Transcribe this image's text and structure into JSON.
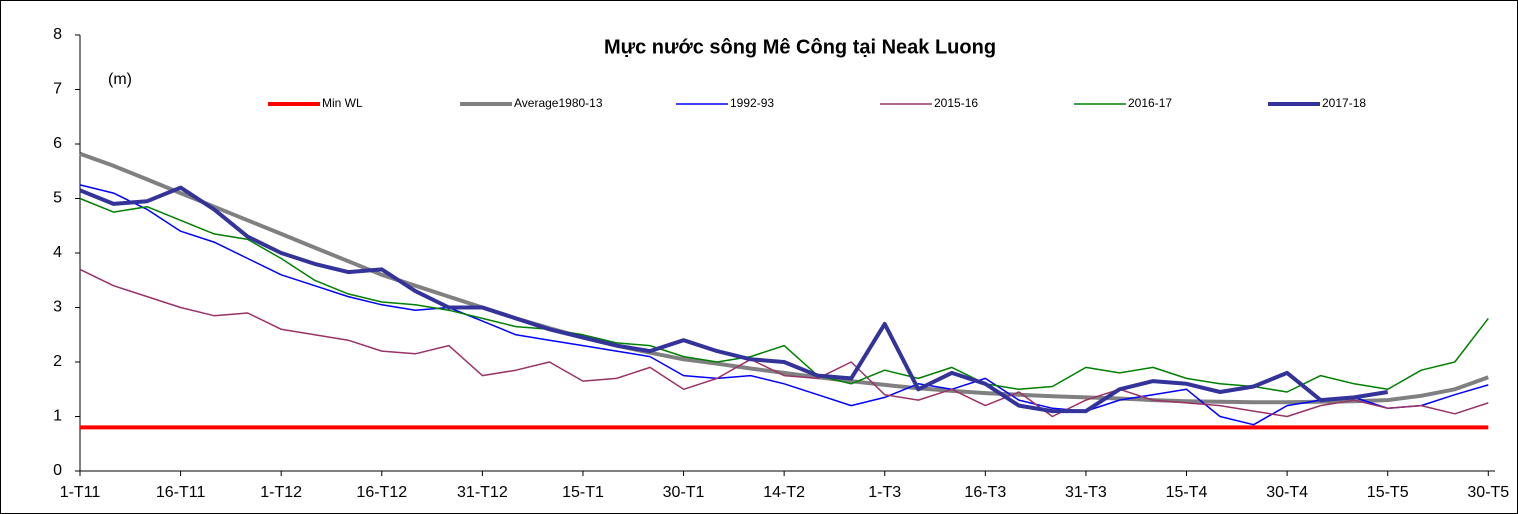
{
  "chart_data": {
    "type": "line",
    "title": "Mực nước sông Mê Công tại Neak Luong",
    "y_label": "(m)",
    "x": [
      0,
      5,
      10,
      15,
      20,
      25,
      30,
      35,
      40,
      45,
      50,
      55,
      60,
      65,
      70,
      75,
      80,
      85,
      90,
      95,
      100,
      105,
      110,
      115,
      120,
      125,
      130,
      135,
      140,
      145,
      150,
      155,
      160,
      165,
      170,
      175,
      180,
      185,
      190,
      195,
      200,
      205,
      210
    ],
    "xlim": [
      0,
      211
    ],
    "xticks": [
      {
        "value": 0,
        "label": "1-T11"
      },
      {
        "value": 15,
        "label": "16-T11"
      },
      {
        "value": 30,
        "label": "1-T12"
      },
      {
        "value": 45,
        "label": "16-T12"
      },
      {
        "value": 60,
        "label": "31-T12"
      },
      {
        "value": 75,
        "label": "15-T1"
      },
      {
        "value": 90,
        "label": "30-T1"
      },
      {
        "value": 105,
        "label": "14-T2"
      },
      {
        "value": 120,
        "label": "1-T3"
      },
      {
        "value": 135,
        "label": "16-T3"
      },
      {
        "value": 150,
        "label": "31-T3"
      },
      {
        "value": 165,
        "label": "15-T4"
      },
      {
        "value": 180,
        "label": "30-T4"
      },
      {
        "value": 195,
        "label": "15-T5"
      },
      {
        "value": 210,
        "label": "30-T5"
      }
    ],
    "ylim": [
      0,
      8
    ],
    "yticks": [
      0,
      1,
      2,
      3,
      4,
      5,
      6,
      7,
      8
    ],
    "legend": "top",
    "series": [
      {
        "name": "Min WL",
        "color": "#ff0000",
        "width": 4,
        "values": [
          0.8,
          0.8,
          0.8,
          0.8,
          0.8,
          0.8,
          0.8,
          0.8,
          0.8,
          0.8,
          0.8,
          0.8,
          0.8,
          0.8,
          0.8,
          0.8,
          0.8,
          0.8,
          0.8,
          0.8,
          0.8,
          0.8,
          0.8,
          0.8,
          0.8,
          0.8,
          0.8,
          0.8,
          0.8,
          0.8,
          0.8,
          0.8,
          0.8,
          0.8,
          0.8,
          0.8,
          0.8,
          0.8,
          0.8,
          0.8,
          0.8,
          0.8,
          0.8
        ]
      },
      {
        "name": "Average1980-13",
        "color": "#808080",
        "width": 4,
        "values": [
          5.82,
          5.6,
          5.35,
          5.1,
          4.85,
          4.6,
          4.35,
          4.1,
          3.85,
          3.6,
          3.4,
          3.2,
          3.0,
          2.8,
          2.62,
          2.45,
          2.3,
          2.17,
          2.05,
          1.97,
          1.88,
          1.8,
          1.72,
          1.65,
          1.58,
          1.52,
          1.47,
          1.43,
          1.4,
          1.37,
          1.35,
          1.33,
          1.3,
          1.28,
          1.27,
          1.26,
          1.26,
          1.27,
          1.28,
          1.3,
          1.38,
          1.5,
          1.72
        ]
      },
      {
        "name": "1992-93",
        "color": "#0000ff",
        "width": 1.5,
        "values": [
          5.25,
          5.1,
          4.8,
          4.4,
          4.2,
          3.9,
          3.6,
          3.4,
          3.2,
          3.05,
          2.95,
          3.0,
          2.75,
          2.5,
          2.4,
          2.3,
          2.2,
          2.1,
          1.75,
          1.7,
          1.75,
          1.6,
          1.4,
          1.2,
          1.35,
          1.6,
          1.5,
          1.7,
          1.3,
          1.15,
          1.1,
          1.3,
          1.4,
          1.5,
          1.0,
          0.85,
          1.2,
          1.3,
          1.35,
          1.15,
          1.2,
          1.4,
          1.58
        ]
      },
      {
        "name": "2015-16",
        "color": "#993366",
        "width": 1.5,
        "values": [
          3.7,
          3.4,
          3.2,
          3.0,
          2.85,
          2.9,
          2.6,
          2.5,
          2.4,
          2.2,
          2.15,
          2.3,
          1.75,
          1.85,
          2.0,
          1.65,
          1.7,
          1.9,
          1.5,
          1.7,
          2.05,
          1.75,
          1.7,
          2.0,
          1.4,
          1.3,
          1.5,
          1.2,
          1.45,
          1.0,
          1.3,
          1.5,
          1.3,
          1.25,
          1.2,
          1.1,
          1.0,
          1.2,
          1.3,
          1.15,
          1.2,
          1.05,
          1.25
        ]
      },
      {
        "name": "2016-17",
        "color": "#008000",
        "width": 1.5,
        "values": [
          5.0,
          4.75,
          4.85,
          4.6,
          4.35,
          4.25,
          3.9,
          3.5,
          3.25,
          3.1,
          3.05,
          2.95,
          2.8,
          2.65,
          2.6,
          2.5,
          2.35,
          2.3,
          2.1,
          2.0,
          2.1,
          2.3,
          1.75,
          1.6,
          1.85,
          1.7,
          1.9,
          1.6,
          1.5,
          1.55,
          1.9,
          1.8,
          1.9,
          1.7,
          1.6,
          1.55,
          1.45,
          1.75,
          1.6,
          1.5,
          1.85,
          2.0,
          2.8
        ]
      },
      {
        "name": "2017-18",
        "color": "#333399",
        "width": 4,
        "values": [
          5.15,
          4.9,
          4.95,
          5.2,
          4.8,
          4.3,
          4.0,
          3.8,
          3.65,
          3.7,
          3.3,
          3.0,
          3.0,
          2.8,
          2.6,
          2.45,
          2.3,
          2.2,
          2.4,
          2.2,
          2.05,
          2.0,
          1.75,
          1.7,
          2.7,
          1.5,
          1.8,
          1.6,
          1.2,
          1.1,
          1.1,
          1.5,
          1.65,
          1.6,
          1.45,
          1.55,
          1.8,
          1.3,
          1.35,
          1.45,
          null,
          null,
          null
        ]
      }
    ]
  }
}
